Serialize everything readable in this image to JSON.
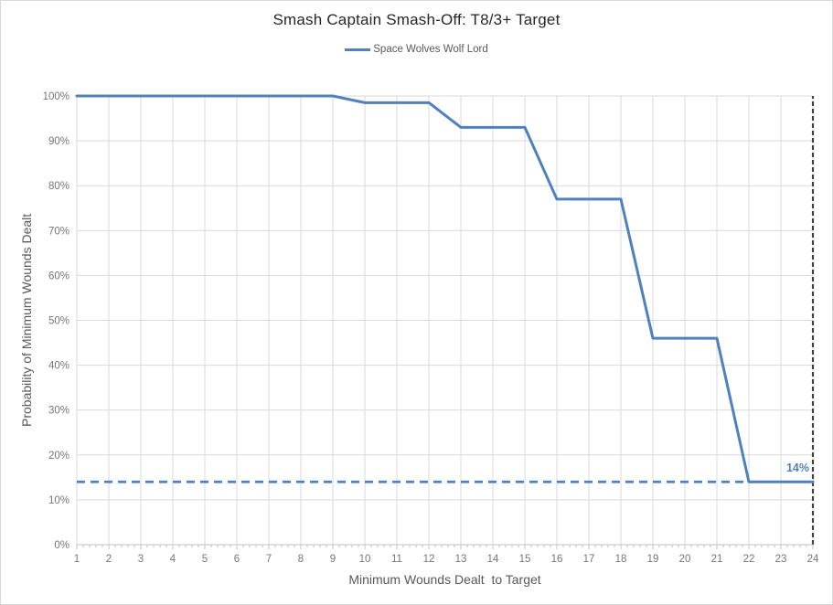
{
  "chart_data": {
    "type": "line",
    "title": "Smash Captain Smash-Off: T8/3+ Target",
    "xlabel": "Minimum Wounds Dealt  to Target",
    "ylabel": "Probability of Minimum Wounds Dealt",
    "x": [
      1,
      2,
      3,
      4,
      5,
      6,
      7,
      8,
      9,
      10,
      11,
      12,
      13,
      14,
      15,
      16,
      17,
      18,
      19,
      20,
      21,
      22,
      23,
      24
    ],
    "series": [
      {
        "name": "Space Wolves Wolf Lord",
        "color": "#4F81BD",
        "values": [
          100,
          100,
          100,
          100,
          100,
          100,
          100,
          100,
          100,
          98.5,
          98.5,
          98.5,
          93,
          93,
          93,
          77,
          77,
          77,
          46,
          46,
          46,
          14,
          14,
          14
        ]
      }
    ],
    "xlim": [
      1,
      24
    ],
    "ylim": [
      0,
      100
    ],
    "y_tick_step": 10,
    "y_tick_suffix": "%",
    "x_minor_ticks_per_interval": 4,
    "grid": true,
    "legend_position": "top",
    "annotations": [
      {
        "type": "hline",
        "y": 14,
        "x_start": 1,
        "x_end": 22,
        "style": "dashed",
        "color": "#4F81BD",
        "label": "14%"
      },
      {
        "type": "vline",
        "x": 24,
        "y_start": 0,
        "y_end": 100,
        "style": "dashed",
        "color": "#404040"
      }
    ],
    "colors": {
      "series": "#4F81BD",
      "gridline": "#D9D9D9",
      "axis": "#C0C0C0",
      "tick_label": "#767676",
      "axis_title": "#595959",
      "legend_text": "#595959",
      "title": "#262626",
      "background": "#FFFFFF",
      "border": "#D9D9D9"
    }
  }
}
